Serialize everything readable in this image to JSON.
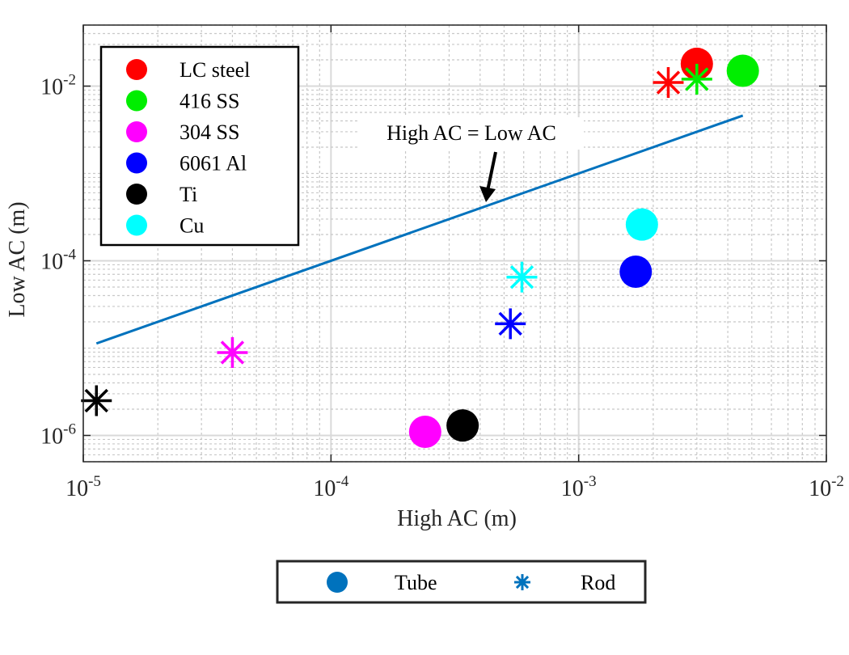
{
  "chart_data": {
    "type": "scatter",
    "xscale": "log",
    "yscale": "log",
    "xlim": [
      1e-05,
      0.01
    ],
    "ylim": [
      5e-07,
      0.05
    ],
    "grid": true,
    "xlabel": "High AC (m)",
    "ylabel": "Low AC (m)",
    "x_ticks": [
      {
        "base": "10",
        "exp": "-5",
        "value": 1e-05
      },
      {
        "base": "10",
        "exp": "-4",
        "value": 0.0001
      },
      {
        "base": "10",
        "exp": "-3",
        "value": 0.001
      },
      {
        "base": "10",
        "exp": "-2",
        "value": 0.01
      }
    ],
    "y_ticks": [
      {
        "base": "10",
        "exp": "-6",
        "value": 1e-06
      },
      {
        "base": "10",
        "exp": "-4",
        "value": 0.0001
      },
      {
        "base": "10",
        "exp": "-2",
        "value": 0.01
      }
    ],
    "series": [
      {
        "name": "LC steel",
        "color": "#ff0000",
        "tube": [
          [
            0.003,
            0.018
          ]
        ],
        "rod": [
          [
            0.0023,
            0.011
          ]
        ]
      },
      {
        "name": "416 SS",
        "color": "#00ee00",
        "tube": [
          [
            0.0046,
            0.015
          ]
        ],
        "rod": [
          [
            0.003,
            0.012
          ]
        ]
      },
      {
        "name": "304 SS",
        "color": "#ff00ff",
        "tube": [
          [
            0.00024,
            1.1e-06
          ]
        ],
        "rod": [
          [
            4e-05,
            8.9e-06
          ]
        ]
      },
      {
        "name": "6061 Al",
        "color": "#0000ff",
        "tube": [
          [
            0.0017,
            7.5e-05
          ]
        ],
        "rod": [
          [
            0.00053,
            1.9e-05
          ]
        ]
      },
      {
        "name": "Ti",
        "color": "#000000",
        "tube": [
          [
            0.00034,
            1.3e-06
          ]
        ],
        "rod": [
          [
            1.13e-05,
            2.5e-06
          ]
        ]
      },
      {
        "name": "Cu",
        "color": "#00ffff",
        "tube": [
          [
            0.0018,
            0.00026
          ]
        ],
        "rod": [
          [
            0.00059,
            6.5e-05
          ]
        ]
      }
    ],
    "reference_line": {
      "x": [
        1.13e-05,
        0.0046
      ],
      "y": [
        1.13e-05,
        0.0046
      ],
      "color": "#0072bd"
    },
    "annotation": {
      "text": "High AC = Low AC",
      "points_to": [
        0.00045,
        0.00045
      ]
    },
    "legend": {
      "placement": "top-left"
    },
    "marker_legend": {
      "placement": "below",
      "items": [
        {
          "label": "Tube",
          "marker": "circle",
          "color": "#0072bd"
        },
        {
          "label": "Rod",
          "marker": "asterisk",
          "color": "#0072bd"
        }
      ]
    }
  }
}
